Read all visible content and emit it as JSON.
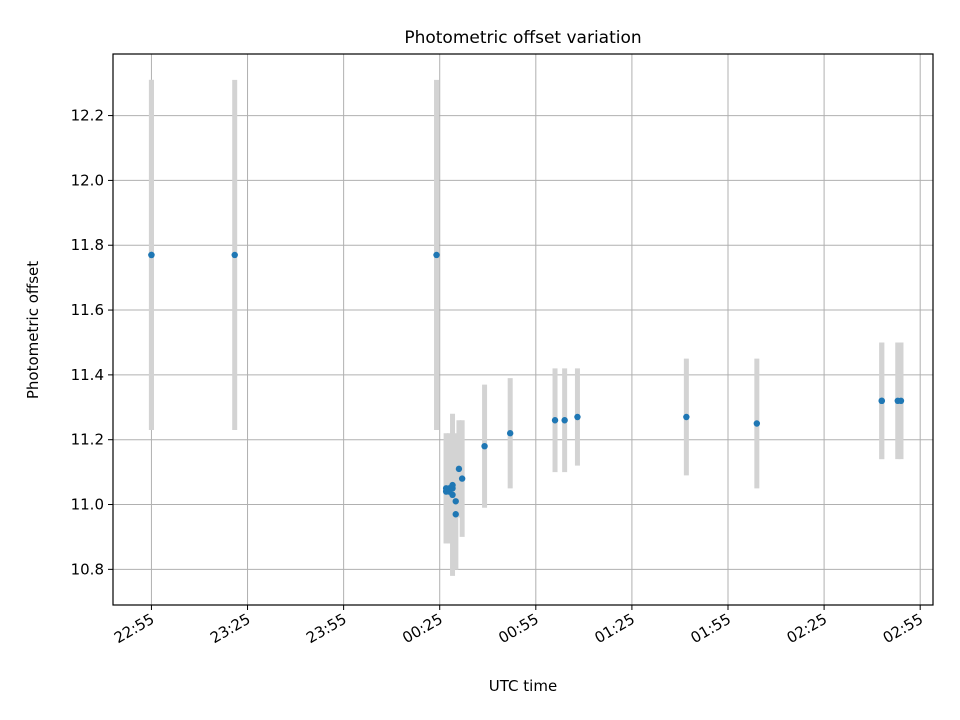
{
  "chart_data": {
    "type": "scatter",
    "title": "Photometric offset variation",
    "xlabel": "UTC time",
    "ylabel": "Photometric offset",
    "x_ticks": [
      "22:55",
      "23:25",
      "23:55",
      "00:25",
      "00:55",
      "01:25",
      "01:55",
      "02:25",
      "02:55"
    ],
    "y_ticks": [
      "10.8",
      "11.0",
      "11.2",
      "11.4",
      "11.6",
      "11.8",
      "12.0",
      "12.2"
    ],
    "xlim": [
      "22:43",
      "02:59"
    ],
    "ylim": [
      10.69,
      12.39
    ],
    "grid": true,
    "colors": {
      "point": "#1f77b4",
      "errorbar": "#d3d3d3",
      "grid": "#b0b0b0"
    },
    "points": [
      {
        "x": "22:55",
        "y": 11.77,
        "yerr": 0.54
      },
      {
        "x": "22:55",
        "y": 11.77,
        "yerr": 0.54
      },
      {
        "x": "23:21",
        "y": 11.77,
        "yerr": 0.54
      },
      {
        "x": "00:24",
        "y": 11.77,
        "yerr": 0.54
      },
      {
        "x": "00:27",
        "y": 11.05,
        "yerr": 0.17
      },
      {
        "x": "00:27",
        "y": 11.04,
        "yerr": 0.16
      },
      {
        "x": "00:28",
        "y": 11.05,
        "yerr": 0.17
      },
      {
        "x": "00:28",
        "y": 11.04,
        "yerr": 0.16
      },
      {
        "x": "00:29",
        "y": 11.05,
        "yerr": 0.17
      },
      {
        "x": "00:29",
        "y": 11.03,
        "yerr": 0.25
      },
      {
        "x": "00:29",
        "y": 11.06,
        "yerr": 0.16
      },
      {
        "x": "00:30",
        "y": 11.01,
        "yerr": 0.21
      },
      {
        "x": "00:30",
        "y": 10.97,
        "yerr": 0.17
      },
      {
        "x": "00:31",
        "y": 11.11,
        "yerr": 0.15
      },
      {
        "x": "00:32",
        "y": 11.08,
        "yerr": 0.18
      },
      {
        "x": "00:39",
        "y": 11.18,
        "yerr": 0.19
      },
      {
        "x": "00:47",
        "y": 11.22,
        "yerr": 0.17
      },
      {
        "x": "01:01",
        "y": 11.26,
        "yerr": 0.16
      },
      {
        "x": "01:04",
        "y": 11.26,
        "yerr": 0.16
      },
      {
        "x": "01:08",
        "y": 11.27,
        "yerr": 0.15
      },
      {
        "x": "01:42",
        "y": 11.27,
        "yerr": 0.18
      },
      {
        "x": "02:04",
        "y": 11.25,
        "yerr": 0.2
      },
      {
        "x": "02:43",
        "y": 11.32,
        "yerr": 0.18
      },
      {
        "x": "02:43",
        "y": 11.32,
        "yerr": 0.18
      },
      {
        "x": "02:48",
        "y": 11.32,
        "yerr": 0.18
      },
      {
        "x": "02:49",
        "y": 11.32,
        "yerr": 0.18
      }
    ]
  }
}
